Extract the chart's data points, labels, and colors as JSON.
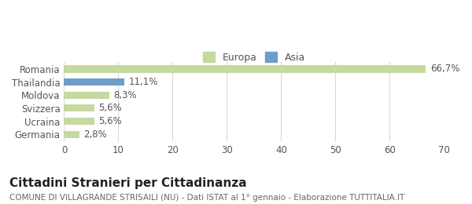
{
  "categories": [
    "Romania",
    "Thailandia",
    "Moldova",
    "Svizzera",
    "Ucraina",
    "Germania"
  ],
  "values": [
    66.7,
    11.1,
    8.3,
    5.6,
    5.6,
    2.8
  ],
  "labels": [
    "66,7%",
    "11,1%",
    "8,3%",
    "5,6%",
    "5,6%",
    "2,8%"
  ],
  "bar_colors": [
    "#c5d9a0",
    "#6e9dc9",
    "#c5d9a0",
    "#c5d9a0",
    "#c5d9a0",
    "#c5d9a0"
  ],
  "legend_labels": [
    "Europa",
    "Asia"
  ],
  "legend_colors": [
    "#c5d9a0",
    "#6e9dc9"
  ],
  "xlim": [
    0,
    70
  ],
  "xticks": [
    0,
    10,
    20,
    30,
    40,
    50,
    60,
    70
  ],
  "title": "Cittadini Stranieri per Cittadinanza",
  "subtitle": "COMUNE DI VILLAGRANDE STRISAILI (NU) - Dati ISTAT al 1° gennaio - Elaborazione TUTTITALIA.IT",
  "grid_color": "#d9d9d9",
  "background_color": "#ffffff",
  "bar_height": 0.55,
  "label_fontsize": 8.5,
  "tick_fontsize": 8.5,
  "title_fontsize": 11,
  "subtitle_fontsize": 7.5
}
